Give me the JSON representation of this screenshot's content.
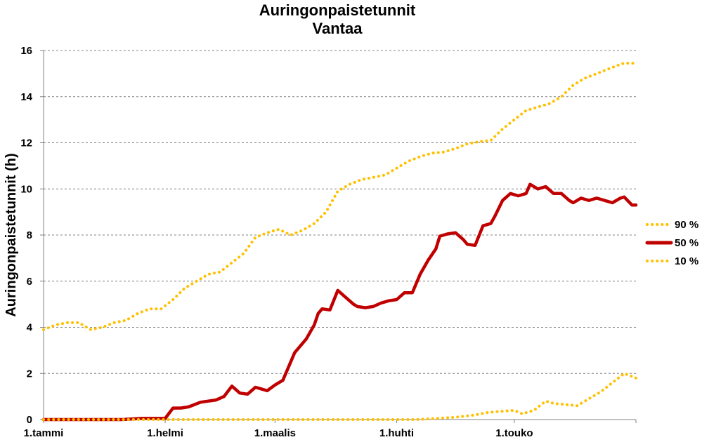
{
  "chart_data": {
    "type": "line",
    "title": "Auringonpaistetunnit",
    "subtitle": "Vantaa",
    "ylabel": "Auringonpaistetunnit (h)",
    "xlabel": "",
    "ylim": [
      0,
      16
    ],
    "yticks": [
      0,
      2,
      4,
      6,
      8,
      10,
      12,
      14,
      16
    ],
    "xlim": [
      0,
      151
    ],
    "x_ticks": [
      {
        "label": "1.tammi",
        "day": 0
      },
      {
        "label": "1.helmi",
        "day": 31
      },
      {
        "label": "1.maalis",
        "day": 59
      },
      {
        "label": "1.huhti",
        "day": 90
      },
      {
        "label": "1.touko",
        "day": 120
      }
    ],
    "grid": true,
    "legend_position": "right",
    "series": [
      {
        "name": "90 %",
        "color": "#FFC000",
        "style": "dotted",
        "x": [
          0,
          3,
          6,
          9,
          12,
          15,
          18,
          21,
          24,
          27,
          30,
          33,
          36,
          39,
          42,
          45,
          48,
          51,
          54,
          57,
          60,
          63,
          66,
          69,
          72,
          75,
          78,
          81,
          84,
          87,
          90,
          93,
          96,
          99,
          102,
          105,
          108,
          111,
          114,
          117,
          120,
          123,
          126,
          129,
          132,
          135,
          138,
          141,
          144,
          147,
          148,
          151
        ],
        "y": [
          3.9,
          4.1,
          4.2,
          4.2,
          3.9,
          4.0,
          4.2,
          4.3,
          4.6,
          4.8,
          4.8,
          5.2,
          5.7,
          6.0,
          6.3,
          6.4,
          6.8,
          7.2,
          7.9,
          8.1,
          8.25,
          8.0,
          8.2,
          8.5,
          9.0,
          9.9,
          10.2,
          10.4,
          10.5,
          10.6,
          10.9,
          11.2,
          11.4,
          11.55,
          11.6,
          11.75,
          11.95,
          12.05,
          12.1,
          12.6,
          13.0,
          13.4,
          13.55,
          13.7,
          14.0,
          14.5,
          14.8,
          15.0,
          15.2,
          15.4,
          15.45,
          15.45
        ]
      },
      {
        "name": "50 %",
        "color": "#C00000",
        "style": "solid",
        "x": [
          0,
          10,
          20,
          25,
          31,
          33,
          35,
          37,
          40,
          42,
          44,
          46,
          48,
          50,
          52,
          54,
          55,
          57,
          59,
          61,
          62,
          64,
          65,
          67,
          69,
          70,
          71,
          73,
          75,
          77,
          79,
          80,
          82,
          84,
          86,
          88,
          90,
          92,
          94,
          96,
          98,
          100,
          101,
          103,
          105,
          107,
          108,
          110,
          112,
          114,
          115,
          117,
          119,
          121,
          123,
          124,
          126,
          128,
          130,
          132,
          134,
          135,
          137,
          139,
          141,
          143,
          145,
          147,
          148,
          150,
          151
        ],
        "y": [
          0,
          0,
          0,
          0.05,
          0.05,
          0.5,
          0.5,
          0.55,
          0.75,
          0.8,
          0.85,
          1.0,
          1.45,
          1.15,
          1.1,
          1.4,
          1.35,
          1.25,
          1.5,
          1.7,
          2.1,
          2.9,
          3.1,
          3.5,
          4.1,
          4.6,
          4.8,
          4.75,
          5.6,
          5.3,
          5.0,
          4.9,
          4.85,
          4.9,
          5.05,
          5.15,
          5.2,
          5.5,
          5.5,
          6.3,
          6.9,
          7.4,
          7.95,
          8.05,
          8.1,
          7.8,
          7.6,
          7.55,
          8.4,
          8.5,
          8.8,
          9.5,
          9.8,
          9.7,
          9.8,
          10.2,
          10.0,
          10.1,
          9.8,
          9.8,
          9.5,
          9.4,
          9.6,
          9.5,
          9.6,
          9.5,
          9.4,
          9.6,
          9.65,
          9.3,
          9.3
        ]
      },
      {
        "name": "10 %",
        "color": "#FFC000",
        "style": "dotted",
        "x": [
          0,
          20,
          40,
          60,
          80,
          95,
          100,
          105,
          110,
          113,
          116,
          120,
          122,
          125,
          128,
          130,
          133,
          136,
          139,
          142,
          145,
          148,
          151
        ],
        "y": [
          0,
          0,
          0,
          0,
          0,
          0,
          0.05,
          0.1,
          0.2,
          0.3,
          0.35,
          0.4,
          0.25,
          0.4,
          0.8,
          0.7,
          0.65,
          0.6,
          0.9,
          1.2,
          1.6,
          2.0,
          1.8
        ]
      }
    ]
  }
}
